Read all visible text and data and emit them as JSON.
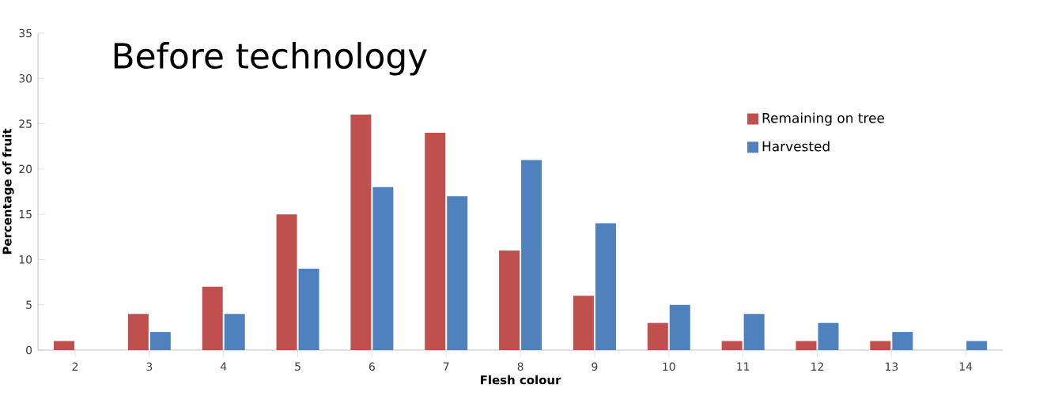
{
  "chart_data": {
    "type": "bar",
    "title": "Before technology",
    "xlabel": "Flesh colour",
    "ylabel": "Percentage of fruit",
    "categories": [
      "2",
      "3",
      "4",
      "5",
      "6",
      "7",
      "8",
      "9",
      "10",
      "11",
      "12",
      "13",
      "14"
    ],
    "series": [
      {
        "name": "Remaining on tree",
        "color": "#c0504d",
        "values": [
          1,
          4,
          7,
          15,
          26,
          24,
          11,
          6,
          3,
          1,
          1,
          1,
          0
        ]
      },
      {
        "name": "Harvested",
        "color": "#4f81bd",
        "values": [
          0,
          2,
          4,
          9,
          18,
          17,
          21,
          14,
          5,
          4,
          3,
          2,
          1
        ]
      }
    ],
    "ylim": [
      0,
      35
    ],
    "yticks": [
      0,
      5,
      10,
      15,
      20,
      25,
      30,
      35
    ],
    "grid": false,
    "legend": "top right"
  }
}
